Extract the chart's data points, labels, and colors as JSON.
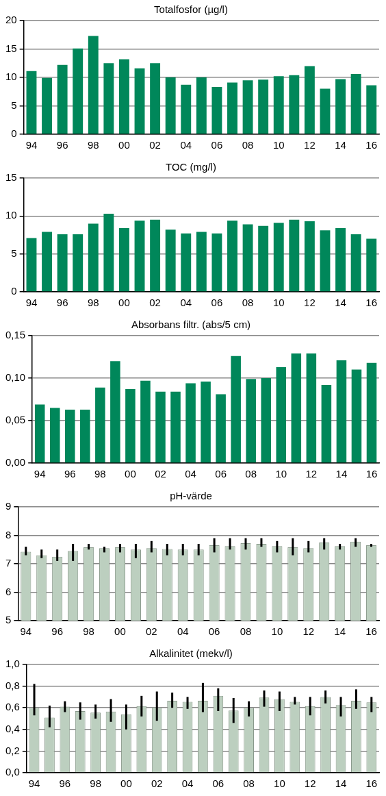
{
  "chart_data": [
    {
      "type": "bar",
      "title": "Totalfosfor (µg/l)",
      "categories": [
        "94",
        null,
        "96",
        null,
        "98",
        null,
        "00",
        null,
        "02",
        null,
        "04",
        null,
        "06",
        null,
        "08",
        null,
        "10",
        null,
        "12",
        null,
        "14",
        null,
        "16"
      ],
      "color": "#00875a",
      "values": [
        11.1,
        9.9,
        12.2,
        15.1,
        17.3,
        12.5,
        13.2,
        11.6,
        12.5,
        10.0,
        8.7,
        10.0,
        8.3,
        9.1,
        9.5,
        9.6,
        10.2,
        10.4,
        12.0,
        8.0,
        9.7,
        10.6,
        8.6
      ],
      "ylim": [
        0,
        20
      ],
      "yticks": [
        0,
        5,
        10,
        15,
        20
      ],
      "grid": "y",
      "legend": false
    },
    {
      "type": "bar",
      "title": "TOC (mg/l)",
      "categories": [
        "94",
        null,
        "96",
        null,
        "98",
        null,
        "00",
        null,
        "02",
        null,
        "04",
        null,
        "06",
        null,
        "08",
        null,
        "10",
        null,
        "12",
        null,
        "14",
        null,
        "16"
      ],
      "color": "#00875a",
      "values": [
        7.1,
        7.9,
        7.6,
        7.6,
        9.0,
        10.3,
        8.4,
        9.4,
        9.5,
        8.2,
        7.7,
        7.9,
        7.7,
        9.4,
        8.9,
        8.7,
        9.1,
        9.5,
        9.3,
        8.1,
        8.4,
        7.6,
        7.0
      ],
      "ylim": [
        0,
        15
      ],
      "yticks": [
        0,
        5,
        10,
        15
      ],
      "grid": "y",
      "legend": false
    },
    {
      "type": "bar",
      "title": "Absorbans filtr. (abs/5 cm)",
      "categories": [
        "94",
        null,
        "96",
        null,
        "98",
        null,
        "00",
        null,
        "02",
        null,
        "04",
        null,
        "06",
        null,
        "08",
        null,
        "10",
        null,
        "12",
        null,
        "14",
        null,
        "16"
      ],
      "color": "#00875a",
      "values": [
        0.069,
        0.065,
        0.063,
        0.063,
        0.089,
        0.12,
        0.087,
        0.097,
        0.084,
        0.084,
        0.094,
        0.096,
        0.081,
        0.126,
        0.099,
        0.1,
        0.113,
        0.129,
        0.129,
        0.092,
        0.121,
        0.11,
        0.118
      ],
      "ylim": [
        0,
        0.15
      ],
      "yticks": [
        {
          "value": 0,
          "label": "0,00"
        },
        {
          "value": 0.05,
          "label": "0,05"
        },
        {
          "value": 0.1,
          "label": "0,10"
        },
        {
          "value": 0.15,
          "label": "0,15"
        }
      ],
      "grid": "y",
      "legend": false
    },
    {
      "type": "bar",
      "title": "pH-värde",
      "categories": [
        "94",
        null,
        "96",
        null,
        "98",
        null,
        "00",
        null,
        "02",
        null,
        "04",
        null,
        "06",
        null,
        "08",
        null,
        "10",
        null,
        "12",
        null,
        "14",
        null,
        "16"
      ],
      "color": "#bccfbf",
      "values": [
        7.42,
        7.3,
        7.25,
        7.45,
        7.58,
        7.55,
        7.58,
        7.5,
        7.55,
        7.52,
        7.5,
        7.5,
        7.65,
        7.62,
        7.72,
        7.7,
        7.62,
        7.58,
        7.55,
        7.75,
        7.62,
        7.78,
        7.65
      ],
      "errors": [
        [
          7.3,
          7.6
        ],
        [
          7.2,
          7.5
        ],
        [
          7.1,
          7.5
        ],
        [
          7.1,
          7.7
        ],
        [
          7.5,
          7.7
        ],
        [
          7.4,
          7.6
        ],
        [
          7.4,
          7.7
        ],
        [
          7.2,
          7.7
        ],
        [
          7.4,
          7.8
        ],
        [
          7.3,
          7.7
        ],
        [
          7.3,
          7.7
        ],
        [
          7.3,
          7.7
        ],
        [
          7.4,
          7.9
        ],
        [
          7.5,
          7.9
        ],
        [
          7.5,
          7.9
        ],
        [
          7.6,
          7.9
        ],
        [
          7.4,
          7.8
        ],
        [
          7.3,
          7.9
        ],
        [
          7.4,
          7.8
        ],
        [
          7.5,
          7.9
        ],
        [
          7.5,
          7.7
        ],
        [
          7.6,
          7.9
        ],
        [
          7.6,
          7.7
        ]
      ],
      "ylim": [
        5,
        9
      ],
      "yticks": [
        5,
        6,
        7,
        8,
        9
      ],
      "grid": "y",
      "legend": false
    },
    {
      "type": "bar",
      "title": "Alkalinitet (mekv/l)",
      "categories": [
        "94",
        null,
        "96",
        null,
        "98",
        null,
        "00",
        null,
        "02",
        null,
        "04",
        null,
        "06",
        null,
        "08",
        null,
        "10",
        null,
        "12",
        null,
        "14",
        null,
        "16"
      ],
      "color": "#bccfbf",
      "values": [
        0.6,
        0.51,
        0.61,
        0.57,
        0.555,
        0.565,
        0.54,
        0.615,
        0.605,
        0.665,
        0.655,
        0.665,
        0.71,
        0.575,
        0.6,
        0.695,
        0.68,
        0.655,
        0.615,
        0.7,
        0.625,
        0.665,
        0.65
      ],
      "errors": [
        [
          0.53,
          0.82
        ],
        [
          0.42,
          0.62
        ],
        [
          0.56,
          0.66
        ],
        [
          0.49,
          0.65
        ],
        [
          0.5,
          0.63
        ],
        [
          0.47,
          0.68
        ],
        [
          0.4,
          0.63
        ],
        [
          0.52,
          0.71
        ],
        [
          0.48,
          0.75
        ],
        [
          0.6,
          0.74
        ],
        [
          0.59,
          0.7
        ],
        [
          0.56,
          0.83
        ],
        [
          0.57,
          0.78
        ],
        [
          0.46,
          0.69
        ],
        [
          0.52,
          0.66
        ],
        [
          0.61,
          0.76
        ],
        [
          0.57,
          0.75
        ],
        [
          0.63,
          0.7
        ],
        [
          0.53,
          0.7
        ],
        [
          0.64,
          0.76
        ],
        [
          0.52,
          0.7
        ],
        [
          0.59,
          0.77
        ],
        [
          0.56,
          0.7
        ]
      ],
      "ylim": [
        0,
        1
      ],
      "yticks": [
        {
          "value": 0,
          "label": "0,0"
        },
        {
          "value": 0.2,
          "label": "0,2"
        },
        {
          "value": 0.4,
          "label": "0,4"
        },
        {
          "value": 0.6,
          "label": "0,6"
        },
        {
          "value": 0.8,
          "label": "0,8"
        },
        {
          "value": 1,
          "label": "1,0"
        }
      ],
      "grid": "y",
      "legend": false
    }
  ]
}
